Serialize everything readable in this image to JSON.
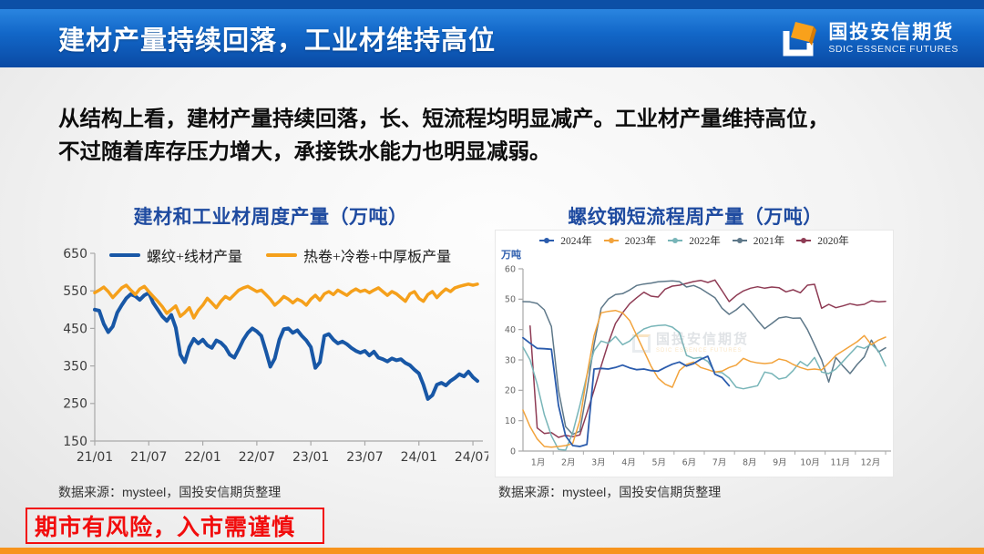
{
  "header": {
    "title": "建材产量持续回落，工业材维持高位",
    "logo_cn": "国投安信期货",
    "logo_en": "SDIC ESSENCE FUTURES"
  },
  "body": {
    "line1": "从结构上看，建材产量持续回落，长、短流程均明显减产。工业材产量维持高位，",
    "line2": "不过随着库存压力增大，承接铁水能力也明显减弱。"
  },
  "watermark": {
    "cn": "国投安信期货",
    "en": "SDIC ESSENCE FUTURES"
  },
  "disclaimer": "期市有风险，入市需谨慎",
  "chart_data": [
    {
      "type": "line",
      "title": "建材和工业材周度产量（万吨）",
      "source": "数据来源：mysteel，国投安信期货整理",
      "ylim": [
        150,
        650
      ],
      "y_ticks": [
        150,
        250,
        350,
        450,
        550,
        650
      ],
      "n_points": 86,
      "x_ticks": [
        "21/01",
        "21/07",
        "22/01",
        "22/07",
        "23/01",
        "23/07",
        "24/01",
        "24/07"
      ],
      "x_tick_indices": [
        0,
        12,
        24,
        36,
        48,
        60,
        72,
        84
      ],
      "legend_style": "line",
      "series": [
        {
          "name": "螺纹+线材产量",
          "color": "#1857a6",
          "width": 4,
          "values": [
            500,
            497,
            462,
            440,
            455,
            492,
            512,
            530,
            541,
            536,
            526,
            538,
            545,
            518,
            500,
            482,
            470,
            486,
            452,
            380,
            360,
            400,
            422,
            410,
            420,
            405,
            398,
            418,
            412,
            400,
            380,
            372,
            395,
            420,
            438,
            450,
            442,
            430,
            390,
            348,
            370,
            420,
            448,
            450,
            438,
            445,
            430,
            418,
            400,
            345,
            360,
            430,
            435,
            420,
            410,
            415,
            408,
            398,
            390,
            385,
            390,
            378,
            388,
            372,
            368,
            362,
            370,
            365,
            368,
            358,
            352,
            340,
            330,
            300,
            262,
            272,
            300,
            305,
            298,
            310,
            318,
            328,
            322,
            335,
            320,
            310
          ]
        },
        {
          "name": "热卷+冷卷+中厚板产量",
          "color": "#f5a01b",
          "width": 3.5,
          "values": [
            545,
            552,
            560,
            548,
            532,
            545,
            558,
            565,
            552,
            540,
            555,
            562,
            548,
            535,
            522,
            508,
            490,
            500,
            510,
            482,
            492,
            505,
            478,
            498,
            512,
            530,
            518,
            505,
            522,
            535,
            528,
            540,
            552,
            558,
            562,
            555,
            548,
            552,
            540,
            528,
            512,
            522,
            535,
            528,
            518,
            528,
            522,
            512,
            528,
            538,
            525,
            542,
            548,
            540,
            552,
            545,
            538,
            548,
            555,
            548,
            552,
            545,
            552,
            558,
            548,
            538,
            548,
            542,
            532,
            522,
            542,
            548,
            530,
            522,
            540,
            548,
            532,
            545,
            555,
            548,
            558,
            562,
            565,
            568,
            565,
            568
          ]
        }
      ]
    },
    {
      "type": "line",
      "title": "螺纹钢短流程周产量（万吨）",
      "source": "数据来源：mysteel，国投安信期货整理",
      "y_axis_label": "万吨",
      "ylim": [
        0,
        60
      ],
      "y_ticks": [
        0,
        10,
        20,
        30,
        40,
        50,
        60
      ],
      "n_points": 52,
      "x_ticks": [
        "1月",
        "2月",
        "3月",
        "4月",
        "5月",
        "6月",
        "7月",
        "8月",
        "9月",
        "10月",
        "11月",
        "12月"
      ],
      "legend_style": "dot",
      "reverse_draw": true,
      "series": [
        {
          "name": "2024年",
          "color": "#2b5cad",
          "width": 1.8,
          "values": [
            37.3,
            35.5,
            33.8,
            33.7,
            33.5,
            15,
            5,
            1.8,
            1.5,
            2.2,
            27,
            27.2,
            27,
            27.5,
            28.3,
            27.4,
            26.8,
            27,
            26.5,
            26.3,
            27.5,
            28.6,
            29.3,
            28,
            28.8,
            30.2,
            31.2,
            25.3,
            24.2,
            21.5
          ]
        },
        {
          "name": "2023年",
          "color": "#f2a33c",
          "width": 1.5,
          "values": [
            13.5,
            8,
            4,
            1.5,
            1.3,
            1.5,
            1.8,
            2.5,
            10,
            25,
            38,
            45.5,
            46,
            46.3,
            45.5,
            43,
            38,
            33,
            28,
            24,
            22,
            21,
            26.5,
            28.5,
            29.3,
            27.5,
            26.8,
            26,
            26.3,
            27.5,
            28.3,
            30.5,
            29.5,
            29,
            28.8,
            29,
            30.3,
            29.8,
            28.5,
            27.5,
            26.8,
            27,
            26.7,
            29,
            31.5,
            33,
            34.5,
            36,
            38,
            35,
            36.5,
            37.5
          ]
        },
        {
          "name": "2022年",
          "color": "#78b5b8",
          "width": 1.5,
          "values": [
            34.2,
            30,
            22,
            12,
            5,
            0.5,
            0.3,
            6,
            15,
            25,
            33,
            36.2,
            35.5,
            37.7,
            35,
            36.2,
            38.5,
            40.2,
            41,
            41.3,
            41.5,
            40.8,
            39,
            31.5,
            30.5,
            30.8,
            29.5,
            26,
            25.8,
            24,
            21,
            20.5,
            21,
            21.5,
            26,
            25.5,
            23.7,
            24.2,
            26.5,
            29.5,
            28,
            30.8,
            26,
            25.5,
            27,
            29.5,
            32,
            34.5,
            33.8,
            35.2,
            33,
            28
          ]
        },
        {
          "name": "2021年",
          "color": "#5e7889",
          "width": 1.5,
          "values": [
            49.2,
            49.1,
            48.6,
            46.5,
            41,
            20,
            8,
            5.5,
            6.5,
            20,
            35,
            47,
            50,
            51.5,
            51.8,
            53,
            54.5,
            55,
            55.3,
            55.7,
            55.9,
            56,
            55.8,
            54,
            54.5,
            53.5,
            52,
            50.5,
            47,
            45,
            46.5,
            48.5,
            46,
            43,
            40.3,
            42,
            43.8,
            44.2,
            43.7,
            43.8,
            40,
            35,
            30,
            22.7,
            30.8,
            28,
            25.5,
            28.5,
            31,
            36.5,
            32.6,
            34
          ]
        },
        {
          "name": "2020年",
          "color": "#8e3b54",
          "width": 1.5,
          "values": [
            null,
            41.2,
            7.6,
            5.8,
            6.1,
            4.5,
            5.2,
            4.7,
            5.3,
            12.5,
            20,
            28,
            35.5,
            42,
            45.5,
            48.5,
            50.5,
            52.3,
            51,
            50.7,
            53.3,
            54.3,
            54.6,
            55.2,
            55.8,
            56.2,
            55.5,
            56.3,
            52.8,
            49.2,
            51.2,
            52.7,
            53.6,
            54.1,
            53.6,
            54,
            53.8,
            52.4,
            53.1,
            52.1,
            54.6,
            54.9,
            47,
            48.3,
            47.2,
            47.8,
            48.5,
            48,
            48.3,
            49.5,
            49.1,
            49.3
          ]
        }
      ]
    }
  ]
}
